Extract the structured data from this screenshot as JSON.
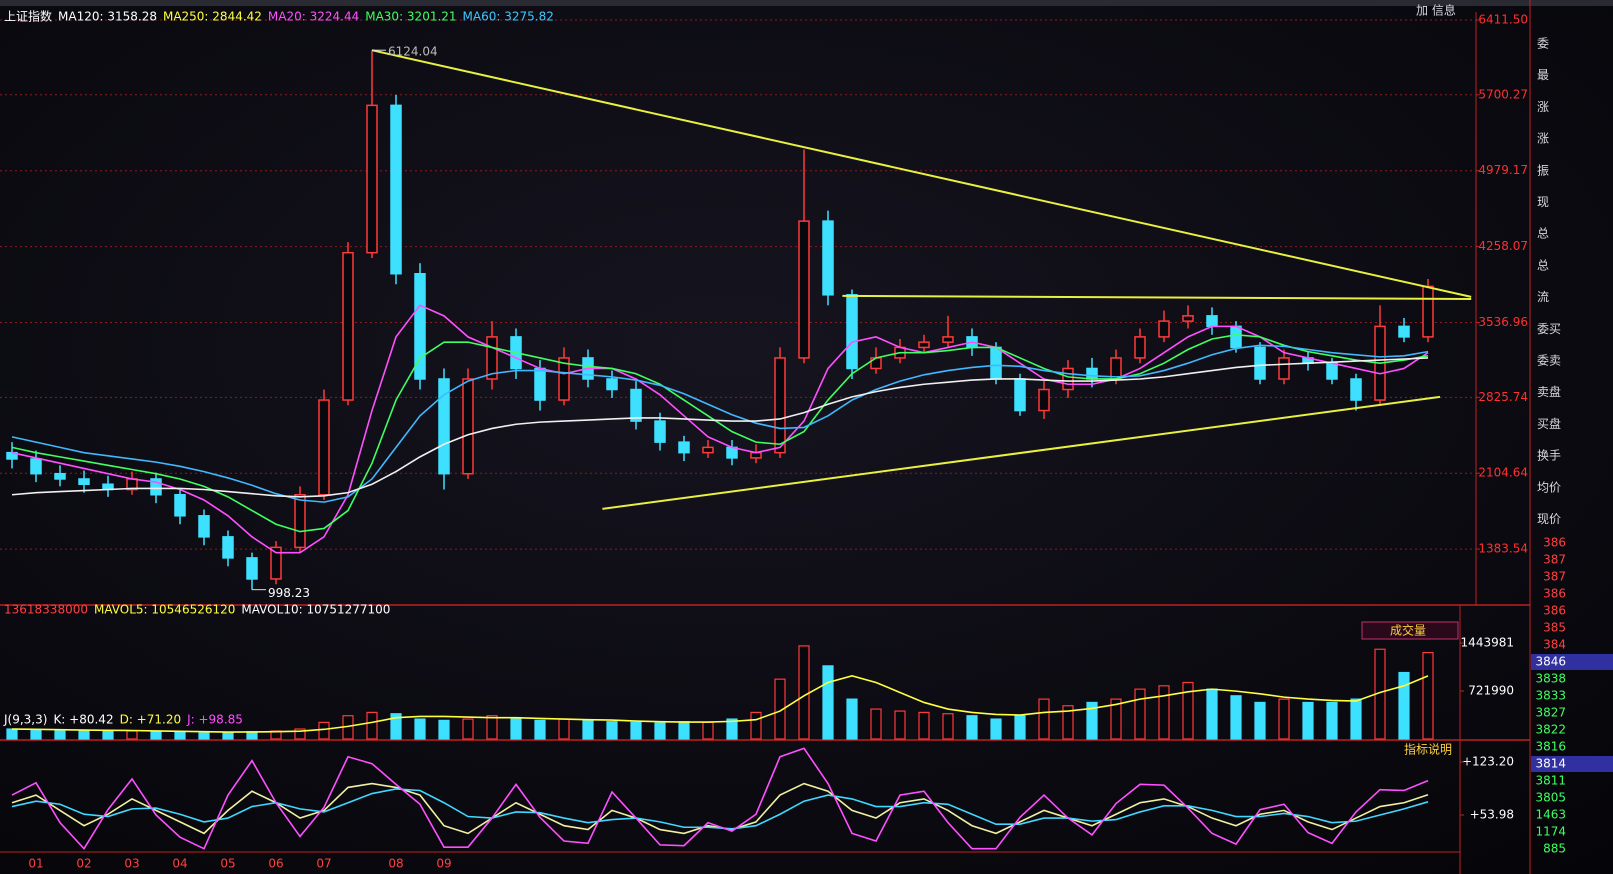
{
  "corner_label": "加 信息",
  "chart_data": [
    {
      "type": "candlestick",
      "header": [
        {
          "text": "上证指数",
          "color": "#ffffff"
        },
        {
          "text": "MA120: 3158.28",
          "color": "#ffffff"
        },
        {
          "text": "MA250: 2844.42",
          "color": "#ffff40"
        },
        {
          "text": "MA20: 3224.44",
          "color": "#ff50ff"
        },
        {
          "text": "MA30: 3201.21",
          "color": "#40ff60"
        },
        {
          "text": "MA60: 3275.82",
          "color": "#40c8ff"
        }
      ],
      "categories": [
        null,
        "01",
        null,
        "02",
        null,
        "03",
        null,
        "04",
        null,
        "05",
        null,
        "06",
        null,
        "07",
        null,
        null,
        "08",
        null,
        "09",
        null,
        null,
        null,
        null,
        null,
        null,
        null,
        null,
        null,
        null,
        null,
        null,
        null,
        null,
        null,
        null,
        null,
        null,
        null,
        null,
        null,
        null,
        null,
        null,
        null,
        null,
        null,
        null,
        null,
        null,
        null,
        null,
        null,
        null,
        null,
        null,
        null,
        null,
        null,
        null,
        null
      ],
      "open": [
        2300,
        2240,
        2100,
        2050,
        2000,
        1950,
        2050,
        1900,
        1700,
        1500,
        1300,
        1100,
        1400,
        1900,
        2800,
        4200,
        5600,
        4000,
        3000,
        2100,
        3000,
        3400,
        3100,
        2800,
        3200,
        3000,
        2900,
        2600,
        2400,
        2300,
        2350,
        2250,
        2300,
        3200,
        4500,
        3800,
        3100,
        3200,
        3300,
        3350,
        3400,
        3300,
        3000,
        2700,
        2900,
        3100,
        3000,
        3200,
        3400,
        3550,
        3600,
        3500,
        3300,
        3000,
        3200,
        3150,
        3000,
        2800,
        3500,
        3400
      ],
      "high": [
        2400,
        2320,
        2180,
        2130,
        2080,
        2120,
        2110,
        1960,
        1760,
        1560,
        1350,
        1460,
        1980,
        2900,
        4300,
        6124,
        5700,
        4100,
        3100,
        3100,
        3550,
        3480,
        3180,
        3300,
        3280,
        3080,
        2980,
        2680,
        2460,
        2420,
        2420,
        2380,
        3300,
        5180,
        4600,
        3850,
        3300,
        3380,
        3420,
        3600,
        3480,
        3350,
        3050,
        2980,
        3180,
        3200,
        3280,
        3480,
        3650,
        3700,
        3680,
        3550,
        3350,
        3280,
        3260,
        3200,
        3050,
        3700,
        3580,
        3950
      ],
      "low": [
        2150,
        2020,
        1980,
        1920,
        1880,
        1900,
        1820,
        1620,
        1420,
        1220,
        998,
        1050,
        1350,
        1850,
        2750,
        4150,
        3900,
        2900,
        1950,
        2050,
        2900,
        3000,
        2700,
        2750,
        2920,
        2820,
        2520,
        2320,
        2220,
        2250,
        2180,
        2200,
        2250,
        3150,
        3700,
        3000,
        3050,
        3150,
        3250,
        3300,
        3220,
        2950,
        2650,
        2620,
        2820,
        2920,
        2950,
        3150,
        3350,
        3480,
        3420,
        3250,
        2950,
        2950,
        3080,
        2950,
        2700,
        2750,
        3350,
        3350
      ],
      "close": [
        2240,
        2100,
        2050,
        2000,
        1950,
        2050,
        1900,
        1700,
        1500,
        1300,
        1100,
        1400,
        1900,
        2800,
        4200,
        5600,
        4000,
        3000,
        2100,
        3000,
        3400,
        3100,
        2800,
        3200,
        3000,
        2900,
        2600,
        2400,
        2300,
        2350,
        2250,
        2300,
        3200,
        4500,
        3800,
        3100,
        3200,
        3300,
        3350,
        3400,
        3300,
        3000,
        2700,
        2900,
        3100,
        3000,
        3200,
        3400,
        3550,
        3600,
        3500,
        3300,
        3000,
        3200,
        3150,
        3000,
        2800,
        3500,
        3400,
        3880
      ],
      "up_color": "#ff3a3a",
      "down_color": "#3ee0ff",
      "ylim": [
        900,
        6487
      ],
      "yticks": [
        {
          "value": 6411.5,
          "label": "6411.50"
        },
        5700.27,
        4979.17,
        4258.07,
        3536.96,
        2825.74,
        2104.64,
        1383.54
      ],
      "grid": true,
      "series": [
        {
          "color": "#ff50ff",
          "values": [
            2300,
            2250,
            2200,
            2150,
            2100,
            2050,
            2020,
            1950,
            1850,
            1700,
            1500,
            1350,
            1350,
            1500,
            1900,
            2700,
            3400,
            3700,
            3600,
            3400,
            3300,
            3200,
            3100,
            3050,
            3100,
            3100,
            3000,
            2850,
            2650,
            2450,
            2350,
            2300,
            2350,
            2600,
            3100,
            3350,
            3400,
            3300,
            3250,
            3300,
            3350,
            3300,
            3150,
            3000,
            2950,
            2950,
            3000,
            3100,
            3250,
            3400,
            3500,
            3500,
            3400,
            3250,
            3200,
            3150,
            3100,
            3050,
            3100,
            3250
          ]
        },
        {
          "color": "#40ff60",
          "values": [
            2350,
            2300,
            2260,
            2220,
            2180,
            2140,
            2100,
            2050,
            1980,
            1880,
            1750,
            1620,
            1550,
            1580,
            1750,
            2200,
            2800,
            3200,
            3350,
            3350,
            3300,
            3250,
            3200,
            3150,
            3120,
            3100,
            3050,
            2950,
            2800,
            2650,
            2500,
            2400,
            2380,
            2500,
            2800,
            3050,
            3200,
            3250,
            3250,
            3270,
            3300,
            3300,
            3200,
            3100,
            3020,
            3000,
            3000,
            3050,
            3150,
            3280,
            3380,
            3420,
            3400,
            3320,
            3260,
            3220,
            3180,
            3150,
            3180,
            3220
          ]
        },
        {
          "color": "#40b8ff",
          "values": [
            2450,
            2400,
            2350,
            2300,
            2270,
            2240,
            2210,
            2170,
            2120,
            2060,
            1990,
            1910,
            1850,
            1830,
            1880,
            2050,
            2350,
            2650,
            2850,
            2980,
            3050,
            3080,
            3080,
            3060,
            3040,
            3020,
            2990,
            2940,
            2860,
            2760,
            2660,
            2580,
            2530,
            2540,
            2650,
            2800,
            2900,
            2980,
            3040,
            3080,
            3110,
            3130,
            3120,
            3080,
            3050,
            3030,
            3020,
            3030,
            3080,
            3150,
            3230,
            3290,
            3320,
            3310,
            3280,
            3250,
            3230,
            3210,
            3220,
            3260
          ]
        },
        {
          "color": "#f0f0f0",
          "values": [
            1900,
            1920,
            1930,
            1940,
            1950,
            1960,
            1960,
            1960,
            1950,
            1930,
            1910,
            1890,
            1880,
            1890,
            1920,
            2000,
            2120,
            2260,
            2380,
            2470,
            2530,
            2570,
            2590,
            2600,
            2610,
            2620,
            2630,
            2630,
            2620,
            2610,
            2600,
            2600,
            2620,
            2680,
            2760,
            2830,
            2880,
            2920,
            2950,
            2970,
            2990,
            3000,
            3000,
            2990,
            2980,
            2980,
            2990,
            3000,
            3020,
            3050,
            3080,
            3110,
            3130,
            3140,
            3150,
            3160,
            3170,
            3180,
            3190,
            3200
          ]
        }
      ],
      "trend_lines": [
        {
          "color": "#e8f040",
          "x": [
            15,
            60.8
          ],
          "y": [
            6124,
            3780
          ]
        },
        {
          "color": "#e8f040",
          "x": [
            34.6,
            60.8
          ],
          "y": [
            3790,
            3760
          ]
        },
        {
          "color": "#e8f040",
          "x": [
            24.6,
            59.5
          ],
          "y": [
            1766,
            2830
          ]
        }
      ],
      "annotations": [
        {
          "x": 15,
          "y": 6124.04,
          "text": "6124.04"
        },
        {
          "x": 10,
          "y": 998.23,
          "text": "998.23"
        }
      ]
    },
    {
      "type": "bar",
      "header": [
        {
          "text": "13618338000",
          "color": "#ff4040"
        },
        {
          "text": "MAVOL5: 10546526120",
          "color": "#ffff40"
        },
        {
          "text": "MAVOL10: 10751277100",
          "color": "#ffffff"
        }
      ],
      "badge": "成交量",
      "values": [
        150000,
        140000,
        130000,
        120000,
        130000,
        120000,
        110000,
        100000,
        90000,
        100000,
        110000,
        120000,
        150000,
        250000,
        350000,
        400000,
        380000,
        300000,
        280000,
        300000,
        350000,
        320000,
        280000,
        300000,
        280000,
        260000,
        250000,
        240000,
        260000,
        250000,
        300000,
        400000,
        900000,
        1400000,
        1100000,
        600000,
        450000,
        420000,
        400000,
        380000,
        350000,
        300000,
        350000,
        600000,
        500000,
        550000,
        600000,
        750000,
        800000,
        850000,
        750000,
        650000,
        550000,
        600000,
        550000,
        550000,
        600000,
        1350000,
        1000000,
        1300000
      ],
      "ylim": [
        0,
        1865000
      ],
      "yticks": [
        1443981,
        721990
      ],
      "series": [
        {
          "color": "#ffff40",
          "values": [
            150000,
            145000,
            140000,
            135000,
            130000,
            128000,
            122000,
            116000,
            110000,
            104000,
            106000,
            110000,
            118000,
            145000,
            190000,
            250000,
            320000,
            340000,
            340000,
            330000,
            320000,
            320000,
            310000,
            300000,
            290000,
            285000,
            270000,
            260000,
            255000,
            255000,
            265000,
            290000,
            420000,
            650000,
            850000,
            950000,
            850000,
            700000,
            550000,
            450000,
            400000,
            370000,
            360000,
            400000,
            420000,
            460000,
            520000,
            600000,
            650000,
            710000,
            750000,
            720000,
            680000,
            630000,
            600000,
            580000,
            570000,
            700000,
            800000,
            950000
          ]
        }
      ]
    },
    {
      "type": "line",
      "header": [
        {
          "text": "J(9,3,3)",
          "color": "#ffffff"
        },
        {
          "text": "K: +80.42",
          "color": "#ffffff"
        },
        {
          "text": "D: +71.20",
          "color": "#ffff40"
        },
        {
          "text": "J: +98.85",
          "color": "#ff50ff"
        }
      ],
      "badge": "指标说明",
      "ylim": [
        8.3,
        151.9
      ],
      "yticks": [
        {
          "value": 123.2,
          "label": "+123.20"
        },
        {
          "value": 53.98,
          "label": "+53.98"
        }
      ],
      "series": [
        {
          "color": "#f0f0a0",
          "values": [
            70,
            80,
            60,
            40,
            55,
            75,
            60,
            45,
            30,
            60,
            85,
            70,
            50,
            60,
            90,
            95,
            90,
            80,
            40,
            30,
            50,
            70,
            55,
            40,
            35,
            60,
            50,
            35,
            30,
            40,
            35,
            45,
            80,
            95,
            85,
            60,
            50,
            70,
            75,
            60,
            40,
            30,
            45,
            60,
            50,
            40,
            55,
            70,
            75,
            65,
            50,
            40,
            55,
            60,
            45,
            35,
            50,
            65,
            70,
            80.42
          ]
        },
        {
          "color": "#40d8ff",
          "values": [
            65,
            72,
            68,
            55,
            52,
            62,
            63,
            55,
            45,
            50,
            65,
            70,
            62,
            58,
            70,
            82,
            88,
            86,
            70,
            52,
            50,
            58,
            57,
            50,
            44,
            48,
            50,
            45,
            38,
            38,
            36,
            40,
            55,
            72,
            80,
            75,
            65,
            65,
            70,
            68,
            55,
            42,
            42,
            50,
            50,
            46,
            48,
            58,
            66,
            66,
            60,
            52,
            52,
            56,
            52,
            44,
            46,
            54,
            62,
            71.2
          ]
        },
        {
          "color": "#ff50ff",
          "values": [
            80,
            96,
            44,
            10,
            61,
            101,
            54,
            25,
            10,
            80,
            125,
            70,
            26,
            64,
            130,
            121,
            94,
            68,
            12,
            12,
            50,
            94,
            51,
            20,
            17,
            84,
            50,
            15,
            14,
            44,
            33,
            55,
            130,
            141,
            95,
            30,
            20,
            80,
            85,
            44,
            10,
            10,
            51,
            80,
            50,
            28,
            69,
            94,
            93,
            63,
            30,
            16,
            61,
            68,
            31,
            17,
            58,
            87,
            86,
            98.85
          ]
        }
      ]
    }
  ],
  "sidebar": {
    "labels": [
      "委",
      "最",
      "涨",
      "涨",
      "振",
      "现",
      "总",
      "总",
      "流",
      "委买",
      "委卖",
      "卖盘",
      "买盘",
      "换手",
      "均价",
      "现价"
    ],
    "numbers": [
      {
        "text": "386",
        "color": "#ff4040"
      },
      {
        "text": "387",
        "color": "#ff4040"
      },
      {
        "text": "387",
        "color": "#ff4040"
      },
      {
        "text": "386",
        "color": "#ff4040"
      },
      {
        "text": "386",
        "color": "#ff4040"
      },
      {
        "text": "385",
        "color": "#ff4040"
      },
      {
        "text": "384",
        "color": "#ff4040"
      },
      {
        "text": "3846",
        "color": "#ffffff"
      },
      {
        "text": "3838",
        "color": "#40ff60"
      },
      {
        "text": "3833",
        "color": "#40ff60"
      },
      {
        "text": "3827",
        "color": "#40ff60"
      },
      {
        "text": "3822",
        "color": "#40ff60"
      },
      {
        "text": "3816",
        "color": "#40ff60"
      },
      {
        "text": "3814",
        "color": "#ffffff"
      },
      {
        "text": "3811",
        "color": "#40ff60"
      },
      {
        "text": "3805",
        "color": "#40ff60"
      },
      {
        "text": "1463",
        "color": "#40ff60"
      },
      {
        "text": "1174",
        "color": "#40ff60"
      },
      {
        "text": "885",
        "color": "#40ff60"
      }
    ]
  }
}
